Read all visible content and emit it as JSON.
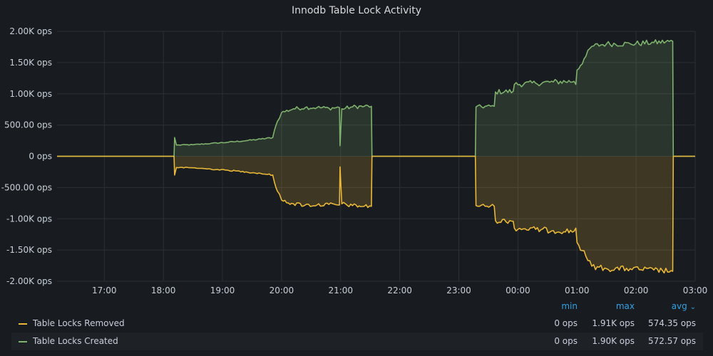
{
  "panel": {
    "title": "Innodb Table Lock Activity"
  },
  "legend": {
    "columns": {
      "min": "min",
      "max": "max",
      "avg": "avg"
    },
    "sort_icon": "chevron-down-icon",
    "rows": [
      {
        "name": "Table Locks Removed",
        "color": "#eab839",
        "min": "0 ops",
        "max": "1.91K ops",
        "avg": "574.35 ops"
      },
      {
        "name": "Table Locks Created",
        "color": "#7eb26d",
        "min": "0 ops",
        "max": "1.90K ops",
        "avg": "572.57 ops"
      }
    ]
  },
  "chart_data": {
    "type": "area",
    "title": "Innodb Table Lock Activity",
    "unit": "ops",
    "x_range": [
      16.2,
      27.0
    ],
    "x_ticks": [
      17,
      18,
      19,
      20,
      21,
      22,
      23,
      24,
      25,
      26,
      27
    ],
    "x_tick_labels": [
      "17:00",
      "18:00",
      "19:00",
      "20:00",
      "21:00",
      "22:00",
      "23:00",
      "00:00",
      "01:00",
      "02:00",
      "03:00"
    ],
    "ylim": [
      -2000,
      2000
    ],
    "y_ticks": [
      2000,
      1500,
      1000,
      500,
      0,
      -500,
      -1000,
      -1500,
      -2000
    ],
    "y_tick_labels": [
      "2.00K ops",
      "1.50K ops",
      "1.00K ops",
      "500.00 ops",
      "0 ops",
      "-500.00 ops",
      "-1.00K ops",
      "-1.50K ops",
      "-2.00K ops"
    ],
    "grid": true,
    "legend_position": "bottom",
    "series": [
      {
        "name": "Table Locks Created",
        "color": "#7eb26d",
        "sign": 1,
        "points": [
          [
            16.2,
            0
          ],
          [
            18.18,
            0
          ],
          [
            18.19,
            300
          ],
          [
            18.22,
            180
          ],
          [
            18.5,
            185
          ],
          [
            18.8,
            205
          ],
          [
            19.1,
            225
          ],
          [
            19.4,
            250
          ],
          [
            19.65,
            275
          ],
          [
            19.85,
            300
          ],
          [
            19.88,
            420
          ],
          [
            19.93,
            560
          ],
          [
            20.0,
            700
          ],
          [
            20.2,
            760
          ],
          [
            20.4,
            780
          ],
          [
            20.6,
            780
          ],
          [
            20.8,
            770
          ],
          [
            20.98,
            780
          ],
          [
            20.99,
            170
          ],
          [
            21.02,
            760
          ],
          [
            21.2,
            790
          ],
          [
            21.4,
            800
          ],
          [
            21.52,
            800
          ],
          [
            21.53,
            0
          ],
          [
            23.28,
            0
          ],
          [
            23.29,
            790
          ],
          [
            23.6,
            800
          ],
          [
            23.62,
            1030
          ],
          [
            23.92,
            1040
          ],
          [
            23.94,
            1150
          ],
          [
            24.3,
            1170
          ],
          [
            24.6,
            1190
          ],
          [
            24.95,
            1200
          ],
          [
            24.98,
            1150
          ],
          [
            25.0,
            1380
          ],
          [
            25.15,
            1600
          ],
          [
            25.25,
            1760
          ],
          [
            25.5,
            1800
          ],
          [
            25.9,
            1800
          ],
          [
            26.3,
            1820
          ],
          [
            26.62,
            1840
          ],
          [
            26.63,
            0
          ],
          [
            27.0,
            0
          ]
        ]
      },
      {
        "name": "Table Locks Removed",
        "color": "#eab839",
        "sign": -1,
        "points": [
          [
            16.2,
            0
          ],
          [
            18.18,
            0
          ],
          [
            18.19,
            300
          ],
          [
            18.22,
            180
          ],
          [
            18.5,
            185
          ],
          [
            18.8,
            205
          ],
          [
            19.1,
            225
          ],
          [
            19.4,
            250
          ],
          [
            19.65,
            275
          ],
          [
            19.85,
            300
          ],
          [
            19.88,
            420
          ],
          [
            19.93,
            560
          ],
          [
            20.0,
            700
          ],
          [
            20.2,
            760
          ],
          [
            20.4,
            780
          ],
          [
            20.6,
            780
          ],
          [
            20.8,
            770
          ],
          [
            20.98,
            780
          ],
          [
            20.99,
            170
          ],
          [
            21.02,
            760
          ],
          [
            21.2,
            790
          ],
          [
            21.4,
            800
          ],
          [
            21.52,
            800
          ],
          [
            21.53,
            0
          ],
          [
            23.28,
            0
          ],
          [
            23.29,
            790
          ],
          [
            23.6,
            800
          ],
          [
            23.62,
            1030
          ],
          [
            23.92,
            1040
          ],
          [
            23.94,
            1150
          ],
          [
            24.3,
            1170
          ],
          [
            24.6,
            1190
          ],
          [
            24.95,
            1200
          ],
          [
            24.98,
            1150
          ],
          [
            25.0,
            1380
          ],
          [
            25.15,
            1600
          ],
          [
            25.25,
            1760
          ],
          [
            25.5,
            1800
          ],
          [
            25.9,
            1800
          ],
          [
            26.3,
            1820
          ],
          [
            26.62,
            1840
          ],
          [
            26.63,
            0
          ],
          [
            27.0,
            0
          ]
        ]
      }
    ]
  }
}
